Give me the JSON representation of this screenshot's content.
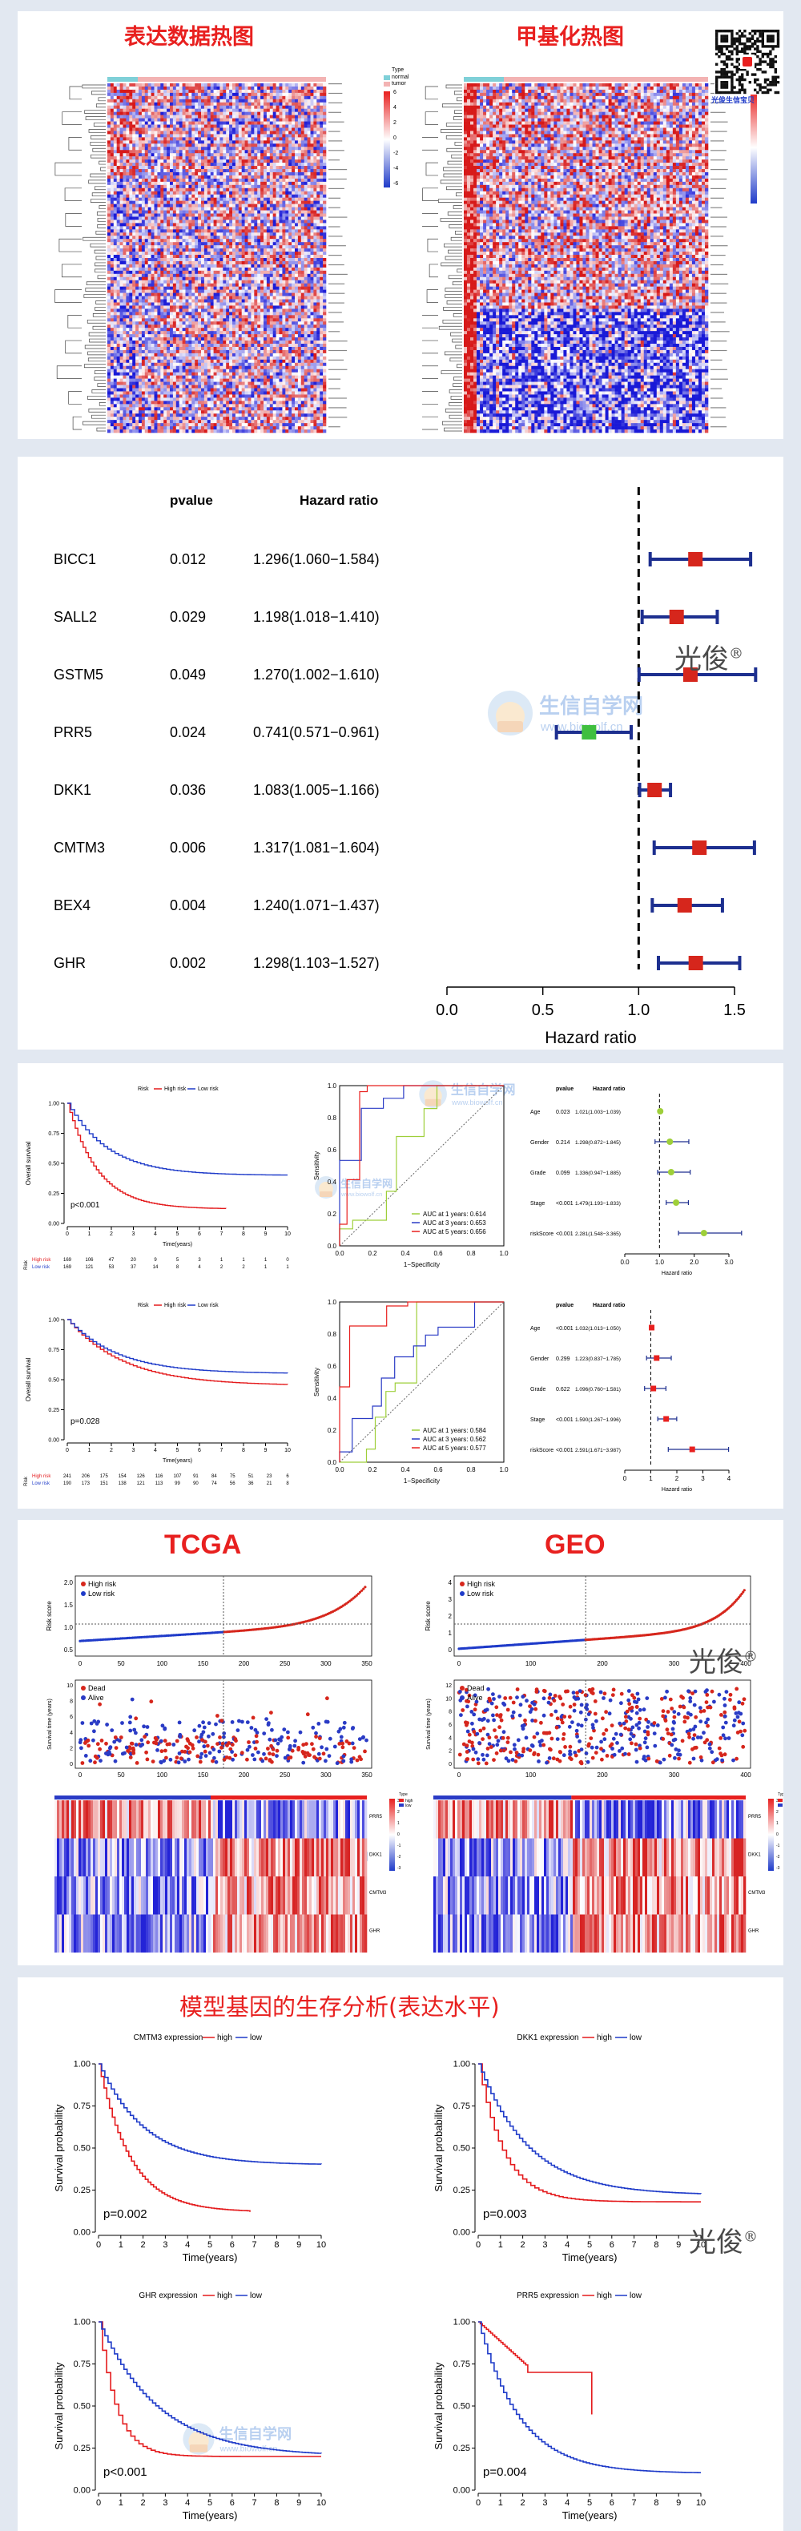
{
  "panel1": {
    "expr_title": "表达数据热图",
    "meth_title": "甲基化热图",
    "legend_type": "Type",
    "legend_normal": "normal",
    "legend_tumor": "tumor",
    "legend_ticks": [
      "6",
      "4",
      "2",
      "0",
      "-2",
      "-4",
      "-6"
    ],
    "qr_caption": "光俊生信宝贝"
  },
  "forest": {
    "header_pvalue": "pvalue",
    "header_hr": "Hazard ratio",
    "xlabel": "Hazard ratio",
    "xticks": [
      "0.0",
      "0.5",
      "1.0",
      "1.5"
    ],
    "rows": [
      {
        "gene": "BICC1",
        "p": "0.012",
        "hr": "1.296(1.060−1.584)",
        "est": 1.296,
        "lo": 1.06,
        "hi": 1.584
      },
      {
        "gene": "SALL2",
        "p": "0.029",
        "hr": "1.198(1.018−1.410)",
        "est": 1.198,
        "lo": 1.018,
        "hi": 1.41
      },
      {
        "gene": "GSTM5",
        "p": "0.049",
        "hr": "1.270(1.002−1.610)",
        "est": 1.27,
        "lo": 1.002,
        "hi": 1.61
      },
      {
        "gene": "PRR5",
        "p": "0.024",
        "hr": "0.741(0.571−0.961)",
        "est": 0.741,
        "lo": 0.571,
        "hi": 0.961
      },
      {
        "gene": "DKK1",
        "p": "0.036",
        "hr": "1.083(1.005−1.166)",
        "est": 1.083,
        "lo": 1.005,
        "hi": 1.166
      },
      {
        "gene": "CMTM3",
        "p": "0.006",
        "hr": "1.317(1.081−1.604)",
        "est": 1.317,
        "lo": 1.081,
        "hi": 1.604
      },
      {
        "gene": "BEX4",
        "p": "0.004",
        "hr": "1.240(1.071−1.437)",
        "est": 1.24,
        "lo": 1.071,
        "hi": 1.437
      },
      {
        "gene": "GHR",
        "p": "0.002",
        "hr": "1.298(1.103−1.527)",
        "est": 1.298,
        "lo": 1.103,
        "hi": 1.527
      }
    ]
  },
  "watermark": {
    "signature": "光俊",
    "site_name": "生信自学网",
    "site_url": "www.biowolf.cn"
  },
  "panel3": {
    "km_legend": [
      "Risk",
      "High risk",
      "Low risk"
    ],
    "km_ylabel": "Overall survival",
    "km_xlabel": "Time(years)",
    "km_yticks": [
      "1.00",
      "0.75",
      "0.50",
      "0.25",
      "0.00"
    ],
    "km_xticks": [
      "0",
      "1",
      "2",
      "3",
      "4",
      "5",
      "6",
      "7",
      "8",
      "9",
      "10"
    ],
    "roc_xlabel": "1−Specificity",
    "roc_ylabel": "Sensitivity",
    "roc_ticks": [
      "0.0",
      "0.2",
      "0.4",
      "0.6",
      "0.8",
      "1.0"
    ],
    "risk_label": "Risk",
    "f_header_p": "pvalue",
    "f_header_hr": "Hazard ratio",
    "f_xlabel": "Hazard ratio",
    "top": {
      "pval": "p<0.001",
      "table_high": [
        "169",
        "106",
        "47",
        "20",
        "9",
        "5",
        "3",
        "1",
        "1",
        "1",
        "0"
      ],
      "table_low": [
        "169",
        "121",
        "53",
        "37",
        "14",
        "8",
        "4",
        "2",
        "2",
        "1",
        "1"
      ],
      "auc": [
        "AUC at 1 years: 0.614",
        "AUC at 3 years: 0.653",
        "AUC at 5 years: 0.656"
      ],
      "forest_rows": [
        {
          "name": "Age",
          "p": "0.023",
          "hr": "1.021(1.003−1.039)"
        },
        {
          "name": "Gender",
          "p": "0.214",
          "hr": "1.298(0.872−1.845)"
        },
        {
          "name": "Grade",
          "p": "0.099",
          "hr": "1.336(0.947−1.885)"
        },
        {
          "name": "Stage",
          "p": "<0.001",
          "hr": "1.479(1.193−1.833)"
        },
        {
          "name": "riskScore",
          "p": "<0.001",
          "hr": "2.281(1.548−3.365)"
        }
      ],
      "forest_xticks": [
        "0.0",
        "1.0",
        "2.0",
        "3.0"
      ]
    },
    "bottom": {
      "pval": "p=0.028",
      "table_high": [
        "241",
        "206",
        "175",
        "154",
        "126",
        "116",
        "107",
        "91",
        "84",
        "75",
        "51",
        "23",
        "6"
      ],
      "table_low": [
        "190",
        "173",
        "151",
        "138",
        "121",
        "113",
        "99",
        "90",
        "74",
        "56",
        "36",
        "21",
        "8"
      ],
      "auc": [
        "AUC at 1 years: 0.584",
        "AUC at 3 years: 0.562",
        "AUC at 5 years: 0.577"
      ],
      "forest_rows": [
        {
          "name": "Age",
          "p": "<0.001",
          "hr": "1.032(1.013−1.050)"
        },
        {
          "name": "Gender",
          "p": "0.299",
          "hr": "1.223(0.837−1.785)"
        },
        {
          "name": "Grade",
          "p": "0.622",
          "hr": "1.096(0.760−1.581)"
        },
        {
          "name": "Stage",
          "p": "<0.001",
          "hr": "1.590(1.267−1.996)"
        },
        {
          "name": "riskScore",
          "p": "<0.001",
          "hr": "2.591(1.671−3.987)"
        }
      ],
      "forest_xticks": [
        "0",
        "1",
        "2",
        "3",
        "4"
      ]
    }
  },
  "panel4": {
    "tcga_title": "TCGA",
    "geo_title": "GEO",
    "high_risk": "High risk",
    "low_risk": "Low risk",
    "dead": "Dead",
    "alive": "Alive",
    "risk_ylabel": "Risk score",
    "surv_ylabel": "Survival time (years)",
    "tcga_xticks": [
      "0",
      "50",
      "100",
      "150",
      "200",
      "250",
      "300",
      "350"
    ],
    "geo_xticks": [
      "0",
      "100",
      "200",
      "300",
      "400"
    ],
    "genes": [
      "PRR5",
      "DKK1",
      "CMTM3",
      "GHR"
    ],
    "legend_ticks": [
      "3",
      "2",
      "1",
      "0",
      "-1",
      "-2",
      "-3"
    ],
    "legend_type": "Type",
    "legend_high": "high",
    "legend_low": "low"
  },
  "panel5": {
    "title": "模型基因的生存分析(表达水平)",
    "high": "high",
    "low": "low",
    "ylabel": "Survival probability",
    "xlabel": "Time(years)",
    "yticks": [
      "1.00",
      "0.75",
      "0.50",
      "0.25",
      "0.00"
    ],
    "xticks": [
      "0",
      "1",
      "2",
      "3",
      "4",
      "5",
      "6",
      "7",
      "8",
      "9",
      "10"
    ],
    "plots": [
      {
        "gene": "CMTM3 expression",
        "pval": "p=0.002"
      },
      {
        "gene": "DKK1 expression",
        "pval": "p=0.003"
      },
      {
        "gene": "GHR expression",
        "pval": "p<0.001"
      },
      {
        "gene": "PRR5 expression",
        "pval": "p=0.004"
      }
    ]
  },
  "colors": {
    "red": "#e8201f",
    "high": "#e41a1c",
    "low": "#1f3bc9",
    "navy": "#1d2f8f"
  }
}
